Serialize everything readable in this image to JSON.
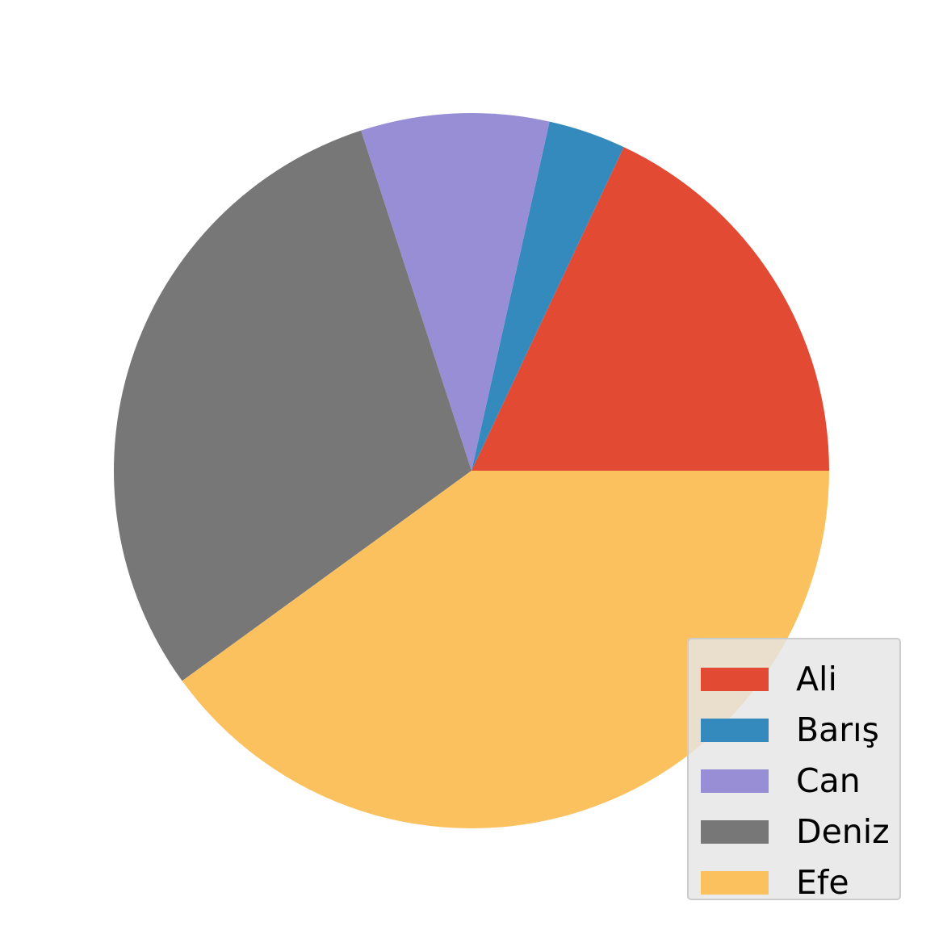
{
  "chart_data": {
    "type": "pie",
    "categories": [
      "Ali",
      "Barış",
      "Can",
      "Deniz",
      "Efe"
    ],
    "values": [
      18,
      3.5,
      8.5,
      30,
      40
    ],
    "unit": "percent",
    "colors": [
      "#E24A33",
      "#348ABD",
      "#988ED5",
      "#777777",
      "#FBC15E"
    ],
    "start_angle_deg": 0,
    "direction": "counterclockwise",
    "legend": {
      "placement": "lower-right",
      "entries": [
        "Ali",
        "Barış",
        "Can",
        "Deniz",
        "Efe"
      ]
    },
    "title": "",
    "grid": false
  }
}
